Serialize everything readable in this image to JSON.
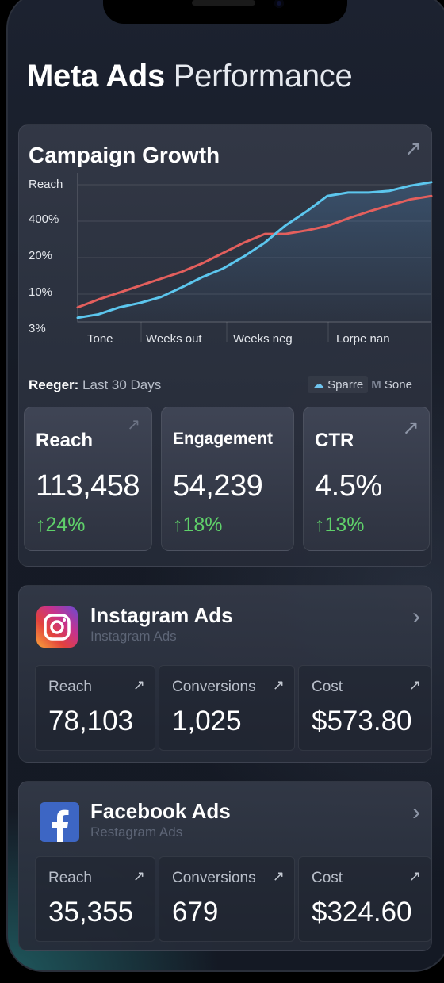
{
  "header": {
    "title_bold": "Meta Ads",
    "title_light": "Performance"
  },
  "growth": {
    "title": "Campaign Growth",
    "range_label": "Reeger:",
    "range_value": "Last 30 Days",
    "legend": [
      {
        "label": "Sparre",
        "icon": "cloud-icon"
      },
      {
        "label": "Sone",
        "icon": "m-icon"
      }
    ]
  },
  "chart_data": {
    "type": "line",
    "ylabel": "Reach",
    "ytick_labels": [
      "400%",
      "20%",
      "10%",
      "3%"
    ],
    "xtick_labels": [
      "Tone",
      "Weeks out",
      "Weeks neg",
      "Lorpe nan"
    ],
    "ylim": [
      0,
      4
    ],
    "grid": true,
    "series": [
      {
        "color": "#5cc6ee",
        "x": [
          0,
          1,
          2,
          3,
          4,
          5,
          6,
          7,
          8,
          9,
          10,
          11,
          12,
          13,
          14,
          15,
          16,
          17
        ],
        "values": [
          0.12,
          0.22,
          0.42,
          0.55,
          0.72,
          1.0,
          1.3,
          1.55,
          1.9,
          2.3,
          2.8,
          3.2,
          3.65,
          3.75,
          3.75,
          3.8,
          3.95,
          4.05
        ]
      },
      {
        "color": "#e35f5d",
        "x": [
          0,
          1,
          2,
          3,
          4,
          5,
          6,
          7,
          8,
          9,
          10,
          11,
          12,
          13,
          14,
          15,
          16,
          17
        ],
        "values": [
          0.42,
          0.65,
          0.85,
          1.05,
          1.25,
          1.45,
          1.7,
          2.0,
          2.3,
          2.55,
          2.55,
          2.65,
          2.78,
          3.0,
          3.2,
          3.38,
          3.55,
          3.65
        ]
      }
    ]
  },
  "stats": [
    {
      "label": "Reach",
      "value": "113,458",
      "change": "24%"
    },
    {
      "label": "Engagement",
      "value": "54,239",
      "change": "18%"
    },
    {
      "label": "CTR",
      "value": "4.5%",
      "change": "13%"
    }
  ],
  "instagram": {
    "name": "Instagram Ads",
    "sub": "Instagram Ads",
    "metrics": [
      {
        "label": "Reach",
        "value": "78,103"
      },
      {
        "label": "Conversions",
        "value": "1,025"
      },
      {
        "label": "Cost",
        "value": "$573.80"
      }
    ]
  },
  "facebook": {
    "name": "Facebook Ads",
    "sub": "Restagram Ads",
    "metrics": [
      {
        "label": "Reach",
        "value": "35,355"
      },
      {
        "label": "Conversions",
        "value": "679"
      },
      {
        "label": "Cost",
        "value": "$324.60"
      }
    ]
  },
  "colors": {
    "positive": "#5fd06a",
    "instagram_gradient": [
      "#f9a33a",
      "#c7328d",
      "#6a4bd3"
    ],
    "facebook": "#3d66c4"
  }
}
